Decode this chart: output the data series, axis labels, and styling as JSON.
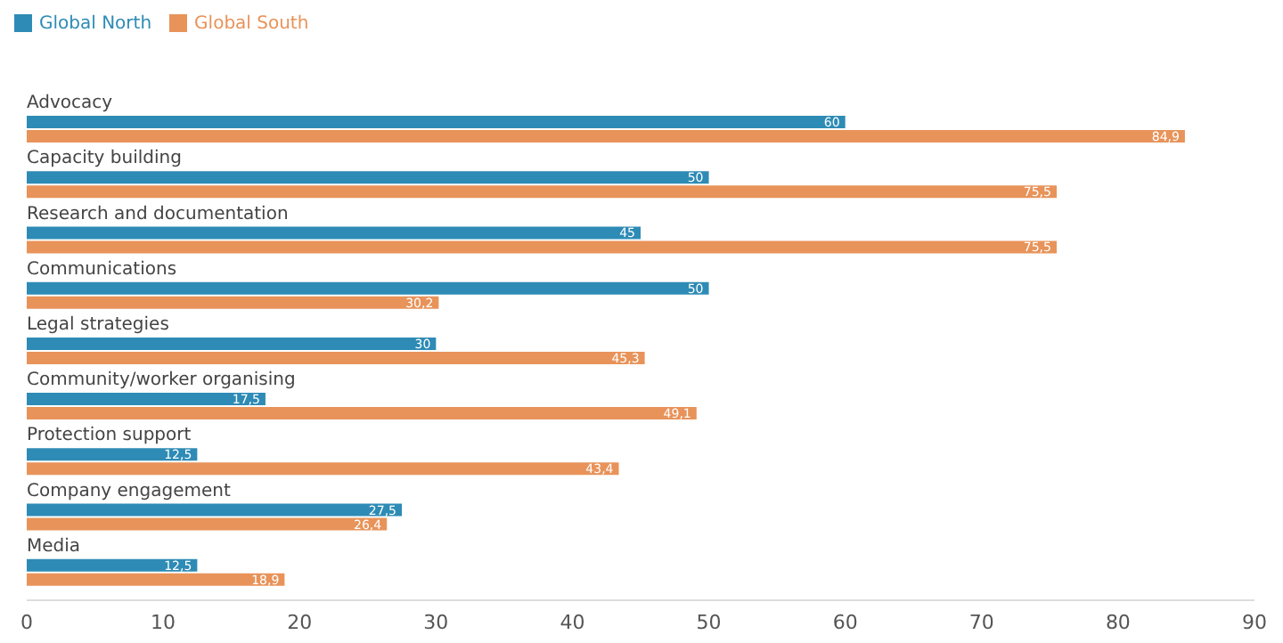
{
  "chart_data": {
    "type": "bar",
    "orientation": "horizontal",
    "legend": "top left",
    "categories": [
      "Advocacy",
      "Capacity building",
      "Research and documentation",
      "Communications",
      "Legal strategies",
      "Community/worker organising",
      "Protection support",
      "Company engagement",
      "Media"
    ],
    "series": [
      {
        "name": "Global North",
        "color": "#2e8bb5",
        "values": [
          60,
          50,
          45,
          50,
          30,
          17.5,
          12.5,
          27.5,
          12.5
        ],
        "value_labels": [
          "60",
          "50",
          "45",
          "50",
          "30",
          "17,5",
          "12,5",
          "27,5",
          "12,5"
        ]
      },
      {
        "name": "Global South",
        "color": "#e8935a",
        "values": [
          84.9,
          75.5,
          75.5,
          30.2,
          45.3,
          49.1,
          43.4,
          26.4,
          18.9
        ],
        "value_labels": [
          "84,9",
          "75,5",
          "75,5",
          "30,2",
          "45,3",
          "49,1",
          "43,4",
          "26,4",
          "18,9"
        ]
      }
    ],
    "xlim": [
      0,
      90
    ],
    "xticks": [
      0,
      10,
      20,
      30,
      40,
      50,
      60,
      70,
      80,
      90
    ]
  }
}
